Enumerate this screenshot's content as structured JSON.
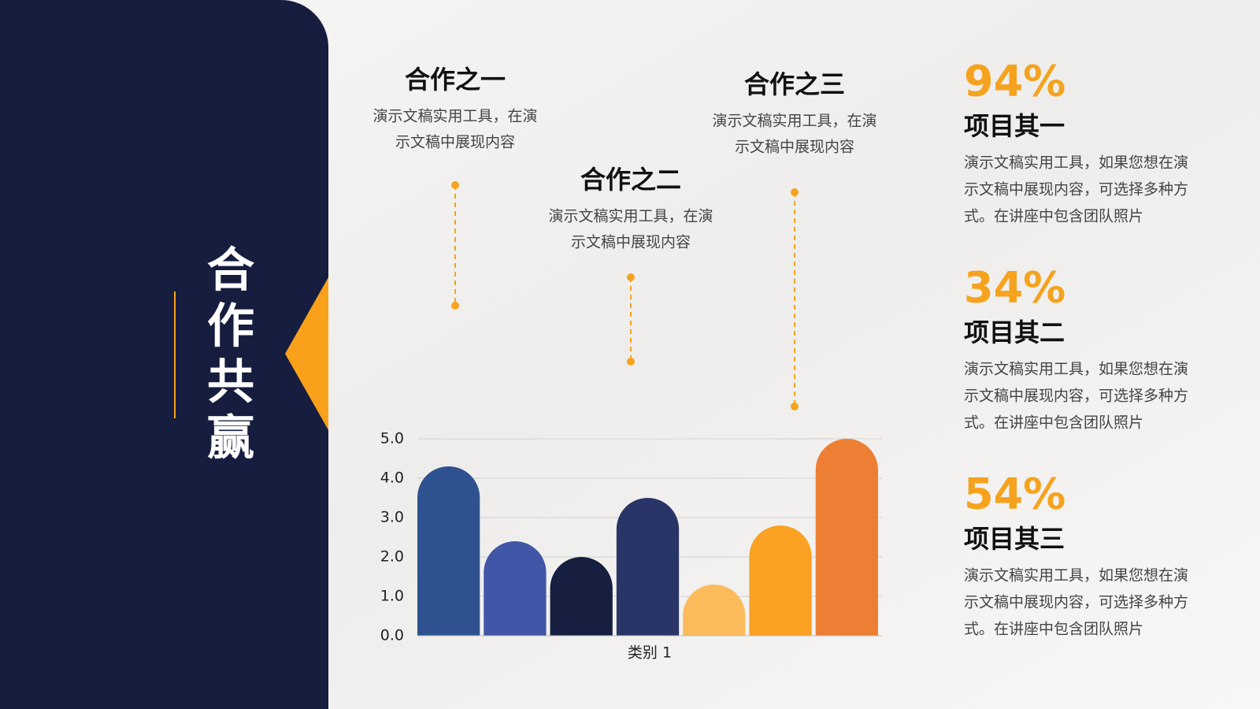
{
  "side_title": "合作共赢",
  "callouts": [
    {
      "title": "合作之一",
      "lines": [
        "演示文稿实用工具，在演",
        "示文稿中展现内容"
      ]
    },
    {
      "title": "合作之二",
      "lines": [
        "演示文稿实用工具，在演",
        "示文稿中展现内容"
      ]
    },
    {
      "title": "合作之三",
      "lines": [
        "演示文稿实用工具，在演",
        "示文稿中展现内容"
      ]
    }
  ],
  "items": [
    {
      "percent": "94%",
      "title": "项目其一",
      "lines": [
        "演示文稿实用工具，如果您想在演",
        "示文稿中展现内容，可选择多种方",
        "式。在讲座中包含团队照片"
      ]
    },
    {
      "percent": "34%",
      "title": "项目其二",
      "lines": [
        "演示文稿实用工具，如果您想在演",
        "示文稿中展现内容，可选择多种方",
        "式。在讲座中包含团队照片"
      ]
    },
    {
      "percent": "54%",
      "title": "项目其三",
      "lines": [
        "演示文稿实用工具，如果您想在演",
        "示文稿中展现内容，可选择多种方",
        "式。在讲座中包含团队照片"
      ]
    }
  ],
  "chart_data": {
    "type": "bar",
    "categories": [
      "类别 1"
    ],
    "series": [
      {
        "color": "#2e528f",
        "values": [
          4.3
        ]
      },
      {
        "color": "#4156a6",
        "values": [
          2.4
        ]
      },
      {
        "color": "#161f40",
        "values": [
          2.0
        ]
      },
      {
        "color": "#283566",
        "values": [
          3.5
        ]
      },
      {
        "color": "#fdbb5c",
        "values": [
          1.3
        ]
      },
      {
        "color": "#fba124",
        "values": [
          2.8
        ]
      },
      {
        "color": "#ed7f35",
        "values": [
          5.0
        ]
      }
    ],
    "ylim": [
      0,
      5
    ],
    "yticks": [
      {
        "value": 0,
        "label": "0.0"
      },
      {
        "value": 1,
        "label": "1.0"
      },
      {
        "value": 2,
        "label": "2.0"
      },
      {
        "value": 3,
        "label": "3.0"
      },
      {
        "value": 4,
        "label": "4.0"
      },
      {
        "value": 5,
        "label": "5.0"
      }
    ],
    "grid": true
  }
}
